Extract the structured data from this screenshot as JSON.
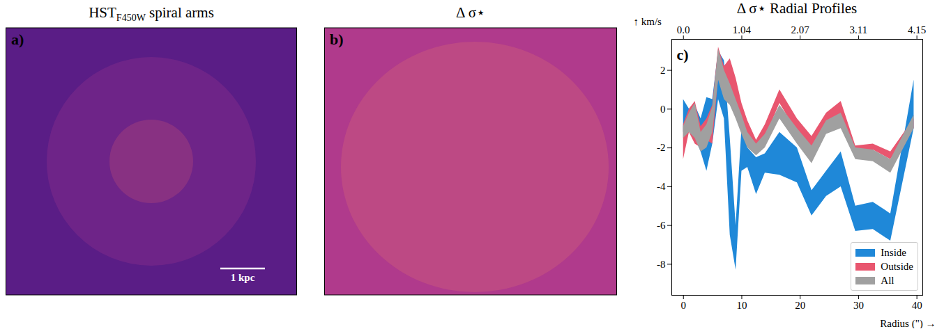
{
  "chart_data": [
    {
      "type": "image",
      "panel": "a)",
      "title": "HST",
      "title_subscript": "F450W",
      "title_suffix": " spiral arms",
      "scale_bar": "1 kpc",
      "color": "#5a1d86"
    },
    {
      "type": "image",
      "panel": "b)",
      "title": "Δ σ⋆",
      "color": "#b03a8c"
    },
    {
      "type": "area",
      "panel": "c)",
      "title": "Δ σ⋆ Radial Profiles",
      "x_label": "Radius (\")",
      "y_label": "km/s",
      "xlim": [
        -2,
        41
      ],
      "ylim": [
        -9.6,
        3.6
      ],
      "xticks": [
        0,
        10,
        20,
        30,
        40
      ],
      "x2ticks": [
        {
          "value": 0,
          "label": "0.0"
        },
        {
          "value": 10,
          "label": "1.04"
        },
        {
          "value": 20,
          "label": "2.07"
        },
        {
          "value": 30,
          "label": "3.11"
        },
        {
          "value": 40,
          "label": "4.15"
        }
      ],
      "yticks": [
        -8,
        -6,
        -4,
        -2,
        0,
        2
      ],
      "legend": "lower right",
      "x": [
        0,
        1,
        2,
        3,
        4,
        5,
        6,
        7,
        8,
        9,
        10,
        11,
        12.5,
        14,
        16.5,
        19.5,
        22,
        24.5,
        27,
        29.5,
        32.5,
        35.5,
        39.5
      ],
      "series": [
        {
          "name": "Inside",
          "color": "#1f88d8",
          "lower": [
            -1.2,
            -1.0,
            -1.5,
            -2.2,
            -3.2,
            -1.8,
            0.5,
            -0.5,
            -6.5,
            -8.3,
            -3.2,
            -3.0,
            -4.4,
            -3.3,
            -3.4,
            -3.8,
            -5.5,
            -4.5,
            -4.0,
            -6.3,
            -6.2,
            -6.8,
            -1.0
          ],
          "upper": [
            0.5,
            0.0,
            0.2,
            -0.5,
            0.6,
            0.5,
            3.0,
            2.5,
            -1.5,
            -6.0,
            -1.0,
            -2.0,
            -2.5,
            -2.3,
            -1.2,
            -2.0,
            -4.2,
            -3.2,
            -2.2,
            -5.0,
            -4.8,
            -5.4,
            1.5
          ]
        },
        {
          "name": "Outside",
          "color": "#e8566f",
          "lower": [
            -2.6,
            -1.2,
            -1.8,
            -2.0,
            -1.6,
            -1.8,
            1.6,
            1.0,
            0.8,
            0.0,
            -0.8,
            -1.6,
            -2.2,
            -1.5,
            0.3,
            -1.2,
            -2.3,
            -0.8,
            -0.3,
            -2.2,
            -2.1,
            -2.6,
            -1.0
          ],
          "upper": [
            -0.8,
            0.0,
            0.4,
            -0.9,
            -0.5,
            0.2,
            3.2,
            2.2,
            2.6,
            1.6,
            0.3,
            -0.6,
            -1.6,
            -0.8,
            1.0,
            -0.5,
            -1.4,
            -0.2,
            0.4,
            -1.9,
            -1.8,
            -2.2,
            -0.5
          ]
        },
        {
          "name": "All",
          "color": "#a0a0a0",
          "lower": [
            -1.5,
            -1.2,
            -1.5,
            -2.2,
            -2.0,
            -1.2,
            1.5,
            0.5,
            0.2,
            -0.5,
            -1.3,
            -2.0,
            -2.4,
            -2.0,
            -0.5,
            -1.8,
            -2.8,
            -1.3,
            -1.0,
            -2.6,
            -2.7,
            -3.3,
            -1.0
          ],
          "upper": [
            -0.9,
            -0.2,
            0.3,
            -1.2,
            -0.8,
            0.1,
            3.1,
            2.0,
            1.3,
            0.5,
            -0.3,
            -1.2,
            -1.8,
            -1.3,
            0.2,
            -1.0,
            -1.9,
            -0.6,
            -0.2,
            -2.0,
            -2.1,
            -2.6,
            -0.3
          ]
        }
      ]
    }
  ]
}
